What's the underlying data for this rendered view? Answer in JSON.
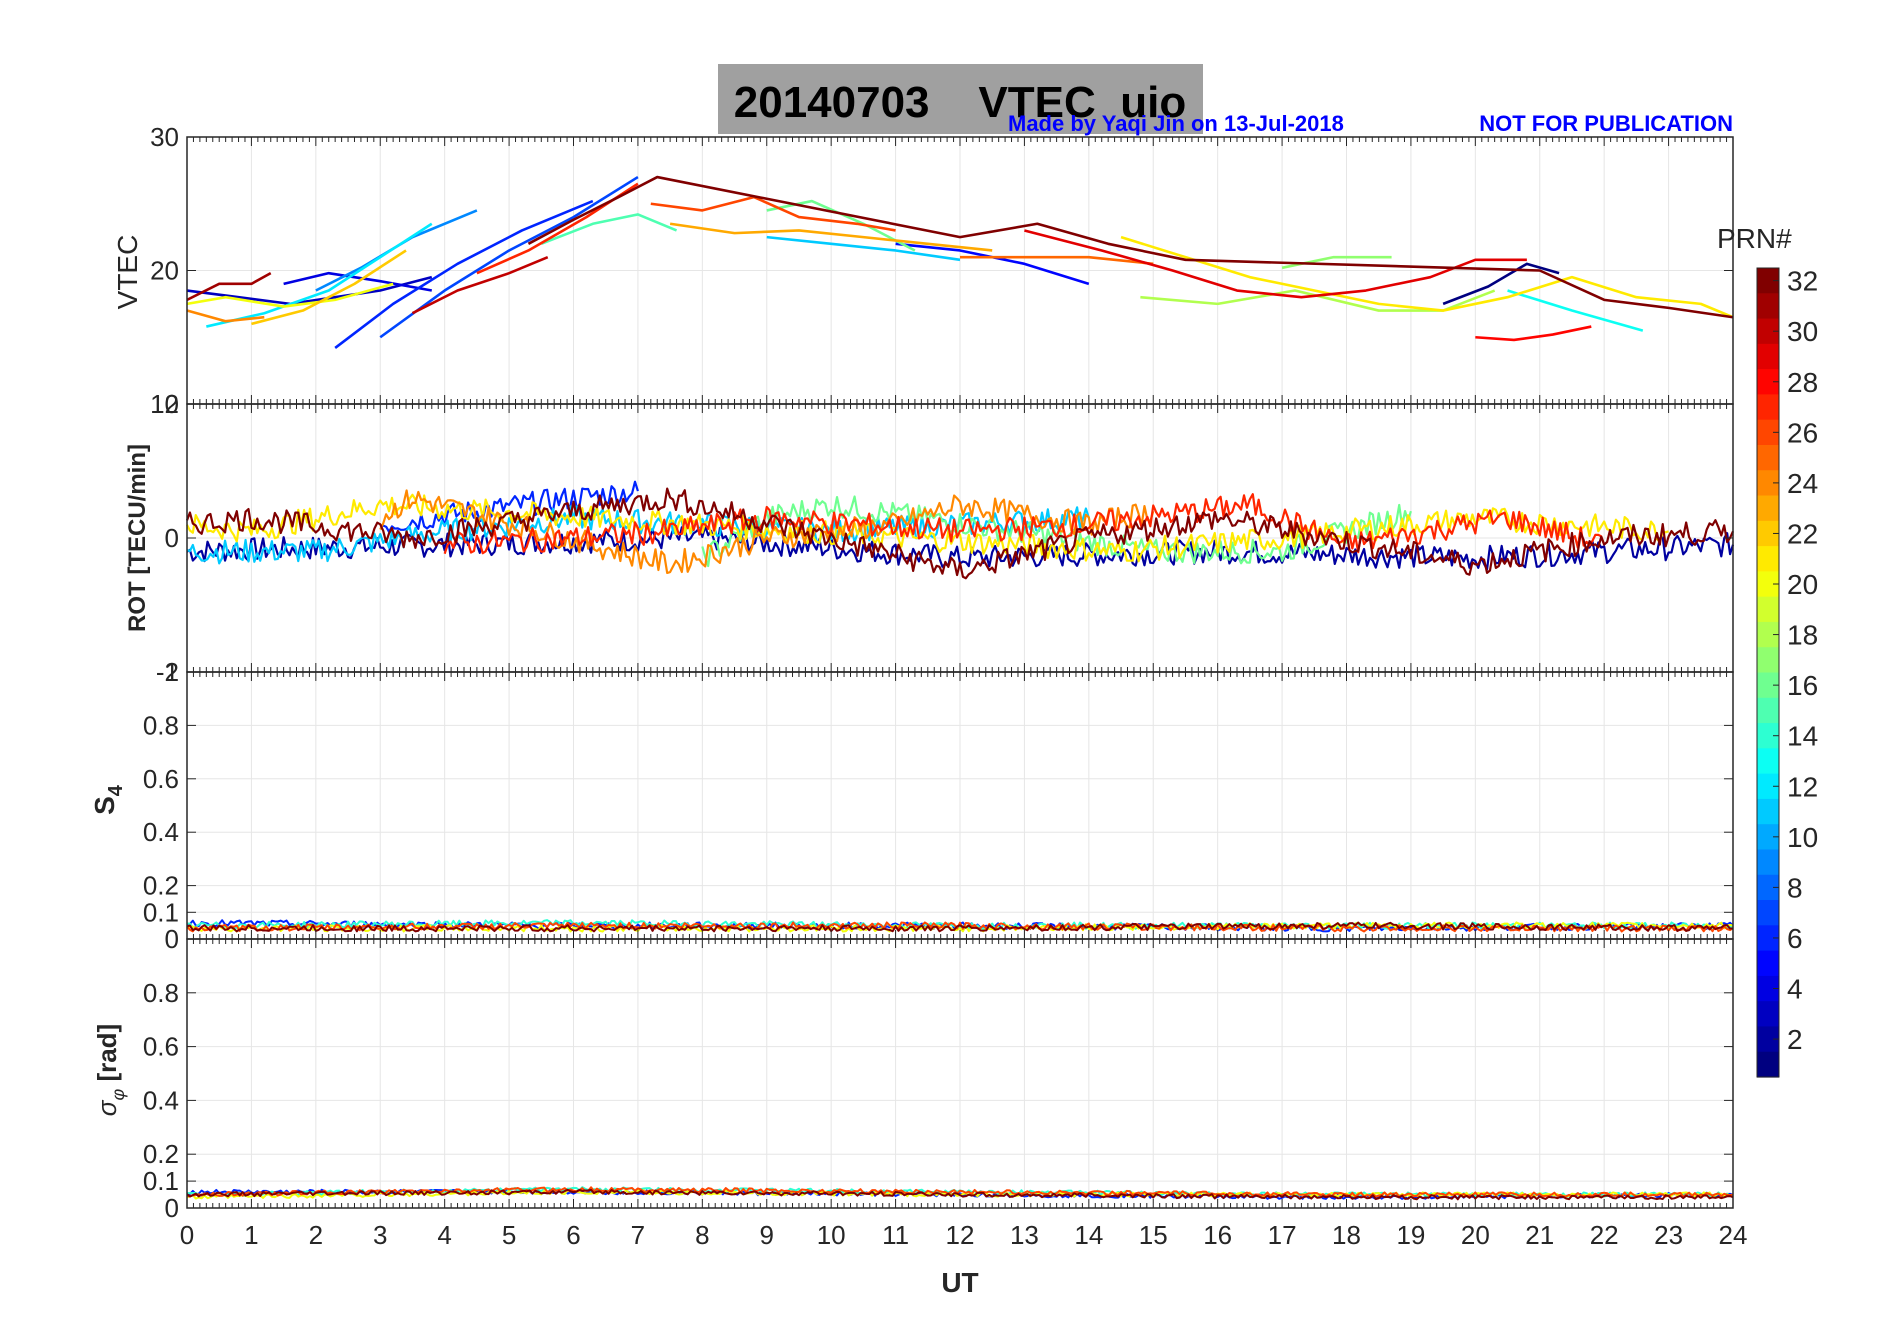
{
  "header": {
    "title": "20140703    VTEC  uio",
    "credit": "Made by Yaqi Jin on 13-Jul-2018",
    "notice": "NOT FOR PUBLICATION"
  },
  "colors": {
    "title_box": "#a0a0a0",
    "credit_text": "#0000ff",
    "grid": "#e6e6e6",
    "axes": "#262626"
  },
  "colorbar": {
    "label": "PRN#",
    "min": 1,
    "max": 32,
    "ticks": [
      "2",
      "4",
      "6",
      "8",
      "10",
      "12",
      "14",
      "16",
      "18",
      "20",
      "22",
      "24",
      "26",
      "28",
      "30",
      "32"
    ],
    "colormap": "jet"
  },
  "chart_data": [
    {
      "id": "vtec",
      "type": "line",
      "ylabel": "VTEC",
      "ylim": [
        10,
        30
      ],
      "xlim": [
        0,
        24
      ],
      "yticks": [
        "10",
        "20",
        "30"
      ],
      "grid": true,
      "series": [
        {
          "prn": 1,
          "x": [
            19.5,
            20.2,
            20.8,
            21.3
          ],
          "y": [
            17.5,
            18.8,
            20.5,
            19.8
          ]
        },
        {
          "prn": 3,
          "x": [
            0,
            0.8,
            1.6,
            2.3,
            3.0,
            3.8
          ],
          "y": [
            18.5,
            18.0,
            17.5,
            18.0,
            18.5,
            19.5
          ]
        },
        {
          "prn": 4,
          "x": [
            1.5,
            2.2,
            3.0,
            3.8
          ],
          "y": [
            19.0,
            19.8,
            19.2,
            18.5
          ]
        },
        {
          "prn": 5,
          "x": [
            11.0,
            12.0,
            13.0,
            14.0
          ],
          "y": [
            22.0,
            21.5,
            20.5,
            19.0
          ]
        },
        {
          "prn": 6,
          "x": [
            2.3,
            3.2,
            4.2,
            5.2,
            6.3
          ],
          "y": [
            14.2,
            17.5,
            20.5,
            23.0,
            25.2
          ]
        },
        {
          "prn": 7,
          "x": [
            3.0,
            4.0,
            5.0,
            6.0,
            7.0
          ],
          "y": [
            15.0,
            18.5,
            21.5,
            24.0,
            27.0
          ]
        },
        {
          "prn": 9,
          "x": [
            2.0,
            2.7,
            3.5,
            4.5
          ],
          "y": [
            18.5,
            20.2,
            22.5,
            24.5
          ]
        },
        {
          "prn": 11,
          "x": [
            9.0,
            10.0,
            11.0,
            12.0
          ],
          "y": [
            22.5,
            22.0,
            21.5,
            20.8
          ]
        },
        {
          "prn": 12,
          "x": [
            0.3,
            1.2,
            2.2,
            3.0,
            3.8
          ],
          "y": [
            15.8,
            16.8,
            18.5,
            21.0,
            23.5
          ]
        },
        {
          "prn": 13,
          "x": [
            20.5,
            21.5,
            22.6
          ],
          "y": [
            18.5,
            17.0,
            15.5
          ]
        },
        {
          "prn": 15,
          "x": [
            5.5,
            6.3,
            7.0,
            7.6
          ],
          "y": [
            22.0,
            23.5,
            24.2,
            23.0
          ]
        },
        {
          "prn": 16,
          "x": [
            9.0,
            9.7,
            10.5,
            11.3
          ],
          "y": [
            24.5,
            25.2,
            23.5,
            21.5
          ]
        },
        {
          "prn": 17,
          "x": [
            17.0,
            17.8,
            18.7
          ],
          "y": [
            20.2,
            21.0,
            21.0
          ]
        },
        {
          "prn": 18,
          "x": [
            14.8,
            16.0,
            17.2,
            18.5,
            19.5,
            20.3
          ],
          "y": [
            18.0,
            17.5,
            18.5,
            17.0,
            17.0,
            18.5
          ]
        },
        {
          "prn": 20,
          "x": [
            0,
            0.6,
            1.5,
            2.3,
            3.2
          ],
          "y": [
            17.5,
            18.0,
            17.3,
            17.8,
            19.0
          ]
        },
        {
          "prn": 21,
          "x": [
            14.5,
            15.5,
            16.5,
            17.5,
            18.5,
            19.5,
            20.5,
            21.5,
            22.5,
            23.5,
            24.0
          ],
          "y": [
            22.5,
            21.0,
            19.5,
            18.5,
            17.5,
            17.0,
            18.0,
            19.5,
            18.0,
            17.5,
            16.5
          ]
        },
        {
          "prn": 22,
          "x": [
            1.0,
            1.8,
            2.6,
            3.4
          ],
          "y": [
            16.0,
            17.0,
            19.0,
            21.5
          ]
        },
        {
          "prn": 23,
          "x": [
            7.5,
            8.5,
            9.5,
            10.5,
            11.5,
            12.5
          ],
          "y": [
            23.5,
            22.8,
            23.0,
            22.5,
            22.0,
            21.5
          ]
        },
        {
          "prn": 24,
          "x": [
            0,
            0.6,
            1.2
          ],
          "y": [
            17.0,
            16.2,
            16.5
          ]
        },
        {
          "prn": 25,
          "x": [
            12.0,
            13.0,
            14.0,
            15.0
          ],
          "y": [
            21.0,
            21.0,
            21.0,
            20.5
          ]
        },
        {
          "prn": 26,
          "x": [
            7.2,
            8.0,
            8.8,
            9.5,
            10.4,
            11.0
          ],
          "y": [
            25.0,
            24.5,
            25.5,
            24.0,
            23.5,
            23.0
          ]
        },
        {
          "prn": 27,
          "x": [
            4.5,
            5.3,
            6.2,
            7.0
          ],
          "y": [
            19.8,
            21.5,
            24.0,
            26.5
          ]
        },
        {
          "prn": 28,
          "x": [
            20.0,
            20.6,
            21.2,
            21.8
          ],
          "y": [
            15.0,
            14.8,
            15.2,
            15.8
          ]
        },
        {
          "prn": 29,
          "x": [
            13.0,
            14.2,
            15.3,
            16.3,
            17.3,
            18.3,
            19.3,
            20.0,
            20.8
          ],
          "y": [
            23.0,
            21.5,
            20.0,
            18.5,
            18.0,
            18.5,
            19.5,
            20.8,
            20.8
          ]
        },
        {
          "prn": 30,
          "x": [
            3.5,
            4.2,
            5.0,
            5.6
          ],
          "y": [
            16.8,
            18.5,
            19.8,
            21.0
          ]
        },
        {
          "prn": 31,
          "x": [
            0,
            0.5,
            1.0,
            1.3
          ],
          "y": [
            17.8,
            19.0,
            19.0,
            19.8
          ]
        },
        {
          "prn": 32,
          "x": [
            5.3,
            6.0,
            6.7,
            7.3,
            12.0,
            13.2,
            14.3,
            15.5,
            21.0,
            22.0,
            23.0,
            24.0
          ],
          "y": [
            22.0,
            23.8,
            25.5,
            27.0,
            22.5,
            23.5,
            22.0,
            20.8,
            20.0,
            17.8,
            17.2,
            16.5
          ]
        }
      ]
    },
    {
      "id": "rot",
      "type": "line",
      "ylabel": "ROT [TECU/min]",
      "ylim": [
        -2,
        2
      ],
      "xlim": [
        0,
        24
      ],
      "yticks": [
        "-2",
        "0",
        "2"
      ],
      "grid": true,
      "series": [
        {
          "prn": 2,
          "x": [
            0,
            4.0,
            8.0,
            12.0,
            16.0,
            20.0,
            24.0
          ],
          "y": [
            -0.2,
            -0.1,
            0.0,
            -0.3,
            -0.2,
            -0.3,
            -0.1
          ]
        },
        {
          "prn": 6,
          "x": [
            3.0,
            4.5,
            6.0,
            7.0
          ],
          "y": [
            0.2,
            0.4,
            0.6,
            0.7
          ]
        },
        {
          "prn": 11,
          "x": [
            0,
            2.0,
            4.0,
            6.0,
            10.0,
            12.0,
            14.0
          ],
          "y": [
            -0.2,
            -0.2,
            0.1,
            0.3,
            0.1,
            0.2,
            0.3
          ]
        },
        {
          "prn": 16,
          "x": [
            8.0,
            9.0,
            10.0,
            15.0,
            17.0,
            19.0
          ],
          "y": [
            -0.3,
            0.3,
            0.5,
            -0.2,
            -0.2,
            0.4
          ]
        },
        {
          "prn": 21,
          "x": [
            0,
            1.0,
            2.0,
            3.0,
            14.5,
            17.0,
            20.0,
            23.0
          ],
          "y": [
            0.2,
            0.1,
            0.3,
            0.5,
            -0.2,
            0.0,
            0.3,
            0.1
          ]
        },
        {
          "prn": 24,
          "x": [
            3.0,
            3.5,
            7.5,
            9.0,
            11.0,
            12.0,
            14.0,
            15.0
          ],
          "y": [
            0.3,
            0.6,
            -0.4,
            0.0,
            0.2,
            0.5,
            0.2,
            0.4
          ]
        },
        {
          "prn": 27,
          "x": [
            4.0,
            6.0,
            7.5,
            9.0,
            12.0,
            14.0,
            16.5,
            18.0,
            20.5,
            22.0
          ],
          "y": [
            -0.1,
            0.0,
            0.1,
            0.3,
            0.1,
            0.2,
            0.5,
            -0.1,
            0.3,
            -0.1
          ]
        },
        {
          "prn": 32,
          "x": [
            0,
            1.0,
            3.5,
            6.0,
            7.5,
            12.0,
            14.0,
            16.0,
            20.0,
            22.0,
            24.0
          ],
          "y": [
            0.2,
            0.3,
            0.0,
            0.4,
            0.6,
            -0.5,
            0.0,
            0.3,
            -0.4,
            0.0,
            0.1
          ]
        }
      ]
    },
    {
      "id": "s4",
      "type": "line",
      "ylabel": "S4",
      "ylim": [
        0,
        1
      ],
      "xlim": [
        0,
        24
      ],
      "yticks": [
        "0",
        "0.1",
        "0.2",
        "0.4",
        "0.6",
        "0.8",
        "1"
      ],
      "grid": true,
      "series": [
        {
          "prn": 6,
          "x": [
            0,
            6,
            12,
            18,
            24
          ],
          "y": [
            0.06,
            0.05,
            0.05,
            0.04,
            0.05
          ]
        },
        {
          "prn": 14,
          "x": [
            0,
            6,
            12,
            18,
            24
          ],
          "y": [
            0.05,
            0.06,
            0.05,
            0.05,
            0.05
          ]
        },
        {
          "prn": 20,
          "x": [
            0,
            6,
            12,
            18,
            24
          ],
          "y": [
            0.04,
            0.04,
            0.04,
            0.05,
            0.05
          ]
        },
        {
          "prn": 26,
          "x": [
            0,
            6,
            12,
            18,
            24
          ],
          "y": [
            0.04,
            0.05,
            0.05,
            0.04,
            0.04
          ]
        },
        {
          "prn": 32,
          "x": [
            0,
            6,
            12,
            18,
            24
          ],
          "y": [
            0.04,
            0.04,
            0.04,
            0.05,
            0.04
          ]
        }
      ]
    },
    {
      "id": "sigma",
      "type": "line",
      "ylabel": "σφ [rad]",
      "ylim": [
        0,
        1
      ],
      "xlim": [
        0,
        24
      ],
      "yticks": [
        "0",
        "0.1",
        "0.2",
        "0.4",
        "0.6",
        "0.8"
      ],
      "xticks": [
        "0",
        "1",
        "2",
        "3",
        "4",
        "5",
        "6",
        "7",
        "8",
        "9",
        "10",
        "11",
        "12",
        "13",
        "14",
        "15",
        "16",
        "17",
        "18",
        "19",
        "20",
        "21",
        "22",
        "23",
        "24"
      ],
      "xlabel": "UT",
      "grid": true,
      "series": [
        {
          "prn": 6,
          "x": [
            0,
            6,
            12,
            18,
            24
          ],
          "y": [
            0.06,
            0.06,
            0.05,
            0.04,
            0.05
          ]
        },
        {
          "prn": 14,
          "x": [
            0,
            6,
            12,
            18,
            24
          ],
          "y": [
            0.05,
            0.07,
            0.06,
            0.05,
            0.05
          ]
        },
        {
          "prn": 20,
          "x": [
            0,
            6,
            12,
            18,
            24
          ],
          "y": [
            0.04,
            0.06,
            0.05,
            0.05,
            0.05
          ]
        },
        {
          "prn": 26,
          "x": [
            0,
            6,
            12,
            18,
            24
          ],
          "y": [
            0.05,
            0.07,
            0.06,
            0.05,
            0.05
          ]
        },
        {
          "prn": 32,
          "x": [
            0,
            6,
            12,
            18,
            24
          ],
          "y": [
            0.05,
            0.06,
            0.05,
            0.04,
            0.04
          ]
        }
      ]
    }
  ]
}
